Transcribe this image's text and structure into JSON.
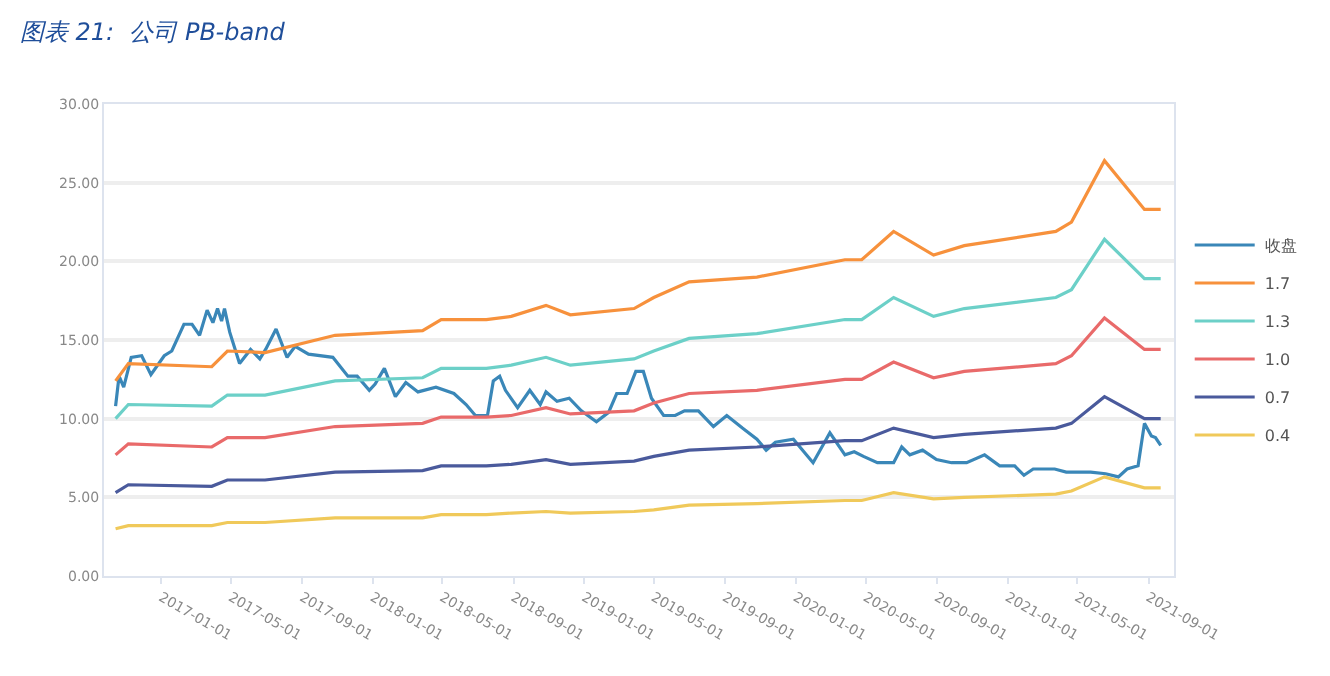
{
  "chart_data": {
    "type": "line",
    "title": "图表 21:  公司 PB-band",
    "xlim": [
      "2016-09-24",
      "2021-10-15"
    ],
    "xticks": [
      "2017-01-01",
      "2017-05-01",
      "2017-09-01",
      "2018-01-01",
      "2018-05-01",
      "2018-09-01",
      "2019-01-01",
      "2019-05-01",
      "2019-09-01",
      "2020-01-01",
      "2020-05-01",
      "2020-09-01",
      "2021-01-01",
      "2021-05-01",
      "2021-09-01"
    ],
    "ylim": [
      0,
      30
    ],
    "yticks": [
      {
        "value": 0,
        "label": "0.00"
      },
      {
        "value": 5,
        "label": "5.00"
      },
      {
        "value": 10,
        "label": "10.00"
      },
      {
        "value": 15,
        "label": "15.00"
      },
      {
        "value": 20,
        "label": "20.00"
      },
      {
        "value": 25,
        "label": "25.00"
      },
      {
        "value": 30,
        "label": "30.00"
      }
    ],
    "grid": "y",
    "legend": "right",
    "marker": "none",
    "line_style": "solid",
    "x": [
      "2016-10-14",
      "2016-11-05",
      "2017-03-29",
      "2017-04-25",
      "2017-06-29",
      "2017-10-28",
      "2018-03-28",
      "2018-04-29",
      "2018-07-16",
      "2018-08-28",
      "2018-10-27",
      "2018-12-08",
      "2019-03-28",
      "2019-05-01",
      "2019-07-01",
      "2019-10-26",
      "2020-03-26",
      "2020-04-24",
      "2020-06-18",
      "2020-08-26",
      "2020-10-18",
      "2021-03-25",
      "2021-04-21",
      "2021-06-17",
      "2021-08-25",
      "2021-09-22"
    ],
    "series": [
      {
        "name": "收盘",
        "color": "#3a87b8",
        "x": [
          "2016-10-14",
          "2016-10-20",
          "2016-10-28",
          "2016-11-10",
          "2016-11-28",
          "2016-12-14",
          "2017-01-06",
          "2017-01-19",
          "2017-02-09",
          "2017-02-23",
          "2017-03-08",
          "2017-03-21",
          "2017-03-31",
          "2017-04-08",
          "2017-04-15",
          "2017-04-20",
          "2017-04-29",
          "2017-05-16",
          "2017-06-04",
          "2017-06-20",
          "2017-06-30",
          "2017-07-18",
          "2017-08-06",
          "2017-08-20",
          "2017-09-12",
          "2017-10-24",
          "2017-11-19",
          "2017-12-05",
          "2017-12-26",
          "2018-01-05",
          "2018-01-21",
          "2018-02-09",
          "2018-02-27",
          "2018-03-20",
          "2018-04-20",
          "2018-05-21",
          "2018-06-11",
          "2018-06-27",
          "2018-07-18",
          "2018-07-28",
          "2018-08-08",
          "2018-08-18",
          "2018-09-08",
          "2018-09-29",
          "2018-10-17",
          "2018-10-27",
          "2018-11-15",
          "2018-12-06",
          "2018-12-27",
          "2019-01-22",
          "2019-02-12",
          "2019-02-26",
          "2019-03-16",
          "2019-03-31",
          "2019-04-13",
          "2019-04-27",
          "2019-05-18",
          "2019-06-07",
          "2019-06-23",
          "2019-07-17",
          "2019-08-12",
          "2019-09-04",
          "2019-10-01",
          "2019-10-26",
          "2019-11-11",
          "2019-11-27",
          "2019-12-28",
          "2020-01-31",
          "2020-02-29",
          "2020-03-26",
          "2020-04-11",
          "2020-04-27",
          "2020-05-21",
          "2020-06-18",
          "2020-07-02",
          "2020-07-16",
          "2020-08-07",
          "2020-08-31",
          "2020-09-26",
          "2020-10-22",
          "2020-11-22",
          "2020-12-18",
          "2021-01-13",
          "2021-01-29",
          "2021-02-14",
          "2021-03-23",
          "2021-04-12",
          "2021-05-24",
          "2021-06-19",
          "2021-07-11",
          "2021-07-26",
          "2021-08-14",
          "2021-08-25",
          "2021-09-06",
          "2021-09-13",
          "2021-09-22"
        ],
        "values": [
          10.8,
          12.7,
          12.0,
          13.9,
          14.0,
          12.8,
          14.0,
          14.3,
          16.0,
          16.0,
          15.3,
          16.9,
          16.1,
          17.0,
          16.2,
          17.0,
          15.5,
          13.5,
          14.4,
          13.8,
          14.4,
          15.7,
          13.9,
          14.6,
          14.1,
          13.9,
          12.7,
          12.7,
          11.8,
          12.2,
          13.2,
          11.4,
          12.3,
          11.7,
          12.0,
          11.6,
          10.9,
          10.2,
          10.2,
          12.4,
          12.7,
          11.8,
          10.7,
          11.8,
          10.9,
          11.7,
          11.1,
          11.3,
          10.5,
          9.8,
          10.4,
          11.6,
          11.6,
          13.0,
          13.0,
          11.3,
          10.2,
          10.2,
          10.5,
          10.5,
          9.5,
          10.2,
          9.4,
          8.7,
          8.0,
          8.5,
          8.7,
          7.2,
          9.1,
          7.7,
          7.9,
          7.6,
          7.2,
          7.2,
          8.2,
          7.7,
          8.0,
          7.4,
          7.2,
          7.2,
          7.7,
          7.0,
          7.0,
          6.4,
          6.8,
          6.8,
          6.6,
          6.6,
          6.5,
          6.3,
          6.8,
          7.0,
          9.7,
          8.9,
          8.8,
          8.3
        ]
      },
      {
        "name": "1.7",
        "color": "#f7913c",
        "values": [
          12.4,
          13.5,
          13.3,
          14.3,
          14.2,
          15.3,
          15.6,
          16.3,
          16.3,
          16.5,
          17.2,
          16.6,
          17.0,
          17.7,
          18.7,
          19.0,
          20.1,
          20.1,
          21.9,
          20.4,
          21.0,
          21.9,
          22.5,
          26.4,
          23.3,
          23.3
        ]
      },
      {
        "name": "1.3",
        "color": "#6cd0c8",
        "values": [
          10.0,
          10.9,
          10.8,
          11.5,
          11.5,
          12.4,
          12.6,
          13.2,
          13.2,
          13.4,
          13.9,
          13.4,
          13.8,
          14.3,
          15.1,
          15.4,
          16.3,
          16.3,
          17.7,
          16.5,
          17.0,
          17.7,
          18.2,
          21.4,
          18.9,
          18.9
        ]
      },
      {
        "name": "1.0",
        "color": "#e96a6a",
        "values": [
          7.7,
          8.4,
          8.2,
          8.8,
          8.8,
          9.5,
          9.7,
          10.1,
          10.1,
          10.2,
          10.7,
          10.3,
          10.5,
          11.0,
          11.6,
          11.8,
          12.5,
          12.5,
          13.6,
          12.6,
          13.0,
          13.5,
          14.0,
          16.4,
          14.4,
          14.4
        ]
      },
      {
        "name": "0.7",
        "color": "#4a5a9c",
        "values": [
          5.3,
          5.8,
          5.7,
          6.1,
          6.1,
          6.6,
          6.7,
          7.0,
          7.0,
          7.1,
          7.4,
          7.1,
          7.3,
          7.6,
          8.0,
          8.2,
          8.6,
          8.6,
          9.4,
          8.8,
          9.0,
          9.4,
          9.7,
          11.4,
          10.0,
          10.0
        ]
      },
      {
        "name": "0.4",
        "color": "#f0c95a",
        "values": [
          3.0,
          3.2,
          3.2,
          3.4,
          3.4,
          3.7,
          3.7,
          3.9,
          3.9,
          4.0,
          4.1,
          4.0,
          4.1,
          4.2,
          4.5,
          4.6,
          4.8,
          4.8,
          5.3,
          4.9,
          5.0,
          5.2,
          5.4,
          6.3,
          5.6,
          5.6
        ]
      }
    ]
  }
}
